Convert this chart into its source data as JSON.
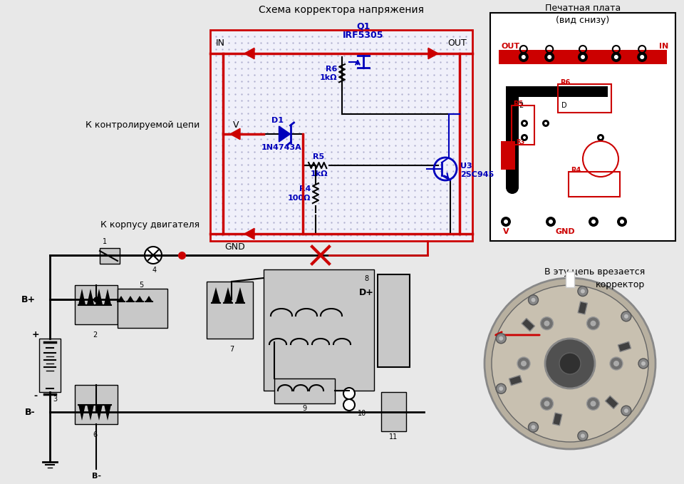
{
  "bg_color": "#e8e8e8",
  "title_schematic": "Схема корректора напряжения",
  "title_pcb": "Печатная плата\n(вид снизу)",
  "label_in": "IN",
  "label_out": "OUT",
  "label_v": "V",
  "label_gnd": "GND",
  "label_q1": "Q1",
  "label_q1_part": "IRF5305",
  "label_d1": "D1",
  "label_d1_part": "1N4743A",
  "label_r4": "R4",
  "label_r4_val": "100Ω",
  "label_r5": "R5",
  "label_r5_val": "1kΩ",
  "label_r6": "R6",
  "label_r6_val": "1kΩ",
  "label_u3": "U3",
  "label_u3_part": "2SC945",
  "label_k_kontrol": "К контролируемой цепи",
  "label_k_korpus": "К корпусу двигателя",
  "label_v_tsep": "В эту цепь врезается\nкорректор",
  "red": "#cc0000",
  "blue": "#0000bb",
  "black": "#000000",
  "white": "#ffffff",
  "gray": "#c8c8c8",
  "dotbg": "#f0f0fa"
}
